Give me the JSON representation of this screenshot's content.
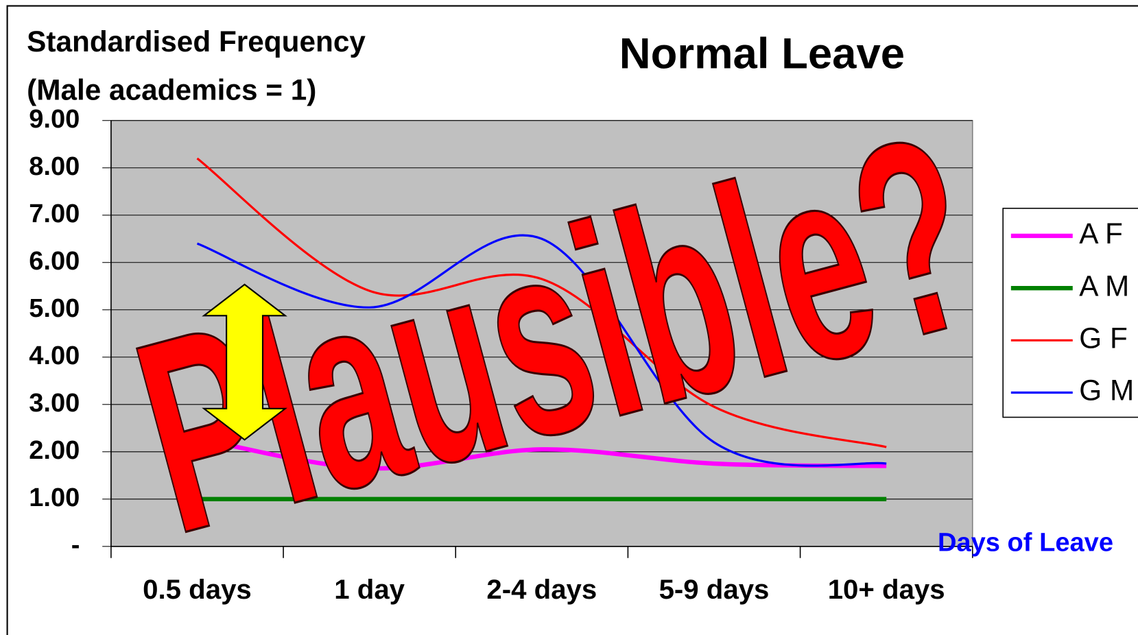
{
  "chart_data": {
    "type": "line",
    "title": "Normal Leave",
    "y_label": [
      "Standardised Frequency",
      "(Male academics = 1)"
    ],
    "x_label": "Days of Leave",
    "annotation": "Plausible?",
    "categories": [
      "0.5 days",
      "1 day",
      "2-4 days",
      "5-9 days",
      "10+ days"
    ],
    "series": [
      {
        "name": "A F",
        "color": "#ff00ff",
        "line_width": 6,
        "values": [
          2.28,
          1.65,
          2.05,
          1.75,
          1.7
        ]
      },
      {
        "name": "A M",
        "color": "#008000",
        "line_width": 6,
        "values": [
          1,
          1,
          1,
          1,
          1
        ]
      },
      {
        "name": "G F",
        "color": "#ff0000",
        "line_width": 3,
        "values": [
          8.2,
          5.4,
          5.65,
          2.95,
          2.1
        ]
      },
      {
        "name": "G M",
        "color": "#0000ff",
        "line_width": 3,
        "values": [
          6.4,
          5.05,
          6.5,
          2.2,
          1.75
        ]
      }
    ],
    "ylim": [
      0,
      9
    ],
    "yticks": [
      {
        "value": 0,
        "label": "-"
      },
      {
        "value": 1,
        "label": "1.00"
      },
      {
        "value": 2,
        "label": "2.00"
      },
      {
        "value": 3,
        "label": "3.00"
      },
      {
        "value": 4,
        "label": "4.00"
      },
      {
        "value": 5,
        "label": "5.00"
      },
      {
        "value": 6,
        "label": "6.00"
      },
      {
        "value": 7,
        "label": "7.00"
      },
      {
        "value": 8,
        "label": "8.00"
      },
      {
        "value": 9,
        "label": "9.00"
      }
    ],
    "grid": true,
    "plot_background": "#c0c0c0",
    "legend": "right"
  }
}
